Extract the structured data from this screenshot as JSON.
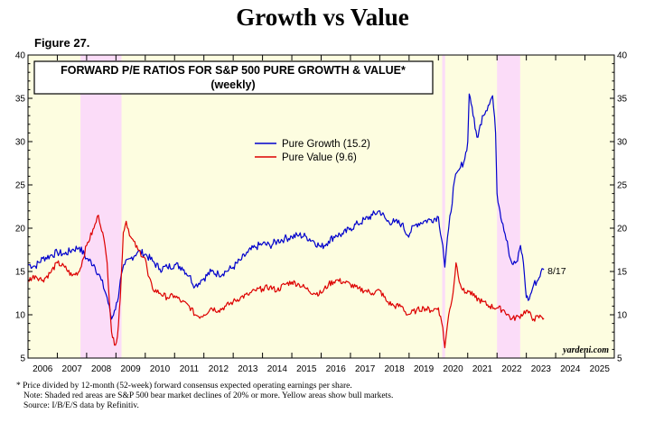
{
  "header": {
    "title": "Growth vs Value",
    "figure": "Figure 27."
  },
  "chart_data": {
    "type": "line",
    "title": "FORWARD P/E RATIOS FOR S&P 500 PURE GROWTH & VALUE*",
    "subtitle": "(weekly)",
    "x_range": [
      2006.0,
      2026.0
    ],
    "ylim": [
      5,
      40
    ],
    "y_ticks": [
      5,
      10,
      15,
      20,
      25,
      30,
      35,
      40
    ],
    "x_tick_labels": [
      "2006",
      "2007",
      "2008",
      "2009",
      "2010",
      "2011",
      "2012",
      "2013",
      "2014",
      "2015",
      "2016",
      "2017",
      "2018",
      "2019",
      "2020",
      "2021",
      "2022",
      "2023",
      "2024",
      "2025"
    ],
    "grid": false,
    "legend_position": "upper-center",
    "background_color": "#fdfde0",
    "bear_market_color": "#fbdcf8",
    "bear_markets": [
      [
        2007.79,
        2009.19
      ],
      [
        2020.13,
        2020.23
      ],
      [
        2022.0,
        2022.79
      ]
    ],
    "end_annotation": "8/17",
    "watermark": "yardeni.com",
    "series": [
      {
        "name": "Pure Growth (15.2)",
        "color": "#0000cc",
        "points": [
          [
            2006.0,
            15.8
          ],
          [
            2006.25,
            15.6
          ],
          [
            2006.5,
            16.5
          ],
          [
            2006.75,
            16.8
          ],
          [
            2007.0,
            17.2
          ],
          [
            2007.25,
            17.0
          ],
          [
            2007.5,
            17.5
          ],
          [
            2007.75,
            17.8
          ],
          [
            2008.0,
            16.5
          ],
          [
            2008.25,
            15.8
          ],
          [
            2008.5,
            14.0
          ],
          [
            2008.7,
            12.0
          ],
          [
            2008.85,
            9.5
          ],
          [
            2008.95,
            10.5
          ],
          [
            2009.05,
            11.5
          ],
          [
            2009.15,
            14.0
          ],
          [
            2009.3,
            15.8
          ],
          [
            2009.5,
            16.5
          ],
          [
            2009.75,
            17.3
          ],
          [
            2010.0,
            17.0
          ],
          [
            2010.25,
            16.2
          ],
          [
            2010.5,
            15.3
          ],
          [
            2010.75,
            15.5
          ],
          [
            2011.0,
            15.8
          ],
          [
            2011.25,
            15.5
          ],
          [
            2011.5,
            14.5
          ],
          [
            2011.7,
            13.3
          ],
          [
            2011.9,
            14.0
          ],
          [
            2012.0,
            14.2
          ],
          [
            2012.25,
            15.0
          ],
          [
            2012.5,
            14.7
          ],
          [
            2012.75,
            15.0
          ],
          [
            2013.0,
            15.5
          ],
          [
            2013.25,
            16.3
          ],
          [
            2013.5,
            17.2
          ],
          [
            2013.75,
            17.8
          ],
          [
            2014.0,
            18.2
          ],
          [
            2014.25,
            18.0
          ],
          [
            2014.5,
            18.5
          ],
          [
            2014.75,
            18.8
          ],
          [
            2015.0,
            19.0
          ],
          [
            2015.25,
            19.2
          ],
          [
            2015.5,
            19.0
          ],
          [
            2015.75,
            18.5
          ],
          [
            2016.0,
            17.8
          ],
          [
            2016.25,
            18.5
          ],
          [
            2016.5,
            19.2
          ],
          [
            2016.75,
            19.3
          ],
          [
            2017.0,
            20.0
          ],
          [
            2017.25,
            20.5
          ],
          [
            2017.5,
            21.0
          ],
          [
            2017.75,
            21.5
          ],
          [
            2018.0,
            22.0
          ],
          [
            2018.25,
            20.8
          ],
          [
            2018.5,
            20.7
          ],
          [
            2018.75,
            20.5
          ],
          [
            2018.95,
            19.2
          ],
          [
            2019.25,
            20.5
          ],
          [
            2019.5,
            20.8
          ],
          [
            2019.75,
            21.0
          ],
          [
            2020.0,
            21.3
          ],
          [
            2020.15,
            18.0
          ],
          [
            2020.22,
            15.5
          ],
          [
            2020.35,
            20.0
          ],
          [
            2020.55,
            25.5
          ],
          [
            2020.75,
            27.0
          ],
          [
            2020.9,
            28.0
          ],
          [
            2021.0,
            30.0
          ],
          [
            2021.05,
            35.5
          ],
          [
            2021.15,
            34.0
          ],
          [
            2021.25,
            31.5
          ],
          [
            2021.35,
            30.5
          ],
          [
            2021.5,
            33.0
          ],
          [
            2021.7,
            34.2
          ],
          [
            2021.85,
            35.3
          ],
          [
            2021.95,
            31.0
          ],
          [
            2022.0,
            24.0
          ],
          [
            2022.1,
            22.0
          ],
          [
            2022.2,
            20.5
          ],
          [
            2022.35,
            18.5
          ],
          [
            2022.45,
            16.5
          ],
          [
            2022.55,
            15.8
          ],
          [
            2022.7,
            16.2
          ],
          [
            2022.8,
            18.0
          ],
          [
            2022.9,
            16.0
          ],
          [
            2023.0,
            12.0
          ],
          [
            2023.1,
            11.8
          ],
          [
            2023.25,
            13.5
          ],
          [
            2023.4,
            14.0
          ],
          [
            2023.5,
            15.0
          ],
          [
            2023.6,
            15.2
          ]
        ]
      },
      {
        "name": "Pure Value (9.6)",
        "color": "#dd0000",
        "points": [
          [
            2006.0,
            14.0
          ],
          [
            2006.25,
            14.5
          ],
          [
            2006.5,
            14.0
          ],
          [
            2006.75,
            14.8
          ],
          [
            2007.0,
            16.0
          ],
          [
            2007.25,
            15.5
          ],
          [
            2007.5,
            14.5
          ],
          [
            2007.75,
            15.0
          ],
          [
            2008.0,
            18.0
          ],
          [
            2008.25,
            20.0
          ],
          [
            2008.4,
            21.5
          ],
          [
            2008.55,
            19.5
          ],
          [
            2008.7,
            16.0
          ],
          [
            2008.85,
            8.0
          ],
          [
            2008.95,
            6.5
          ],
          [
            2009.05,
            7.5
          ],
          [
            2009.15,
            12.0
          ],
          [
            2009.25,
            19.5
          ],
          [
            2009.35,
            20.8
          ],
          [
            2009.5,
            19.0
          ],
          [
            2009.75,
            17.5
          ],
          [
            2010.0,
            16.5
          ],
          [
            2010.1,
            14.5
          ],
          [
            2010.25,
            13.0
          ],
          [
            2010.5,
            12.5
          ],
          [
            2010.75,
            12.0
          ],
          [
            2011.0,
            12.2
          ],
          [
            2011.25,
            11.5
          ],
          [
            2011.5,
            11.0
          ],
          [
            2011.7,
            10.0
          ],
          [
            2011.9,
            9.8
          ],
          [
            2012.0,
            10.0
          ],
          [
            2012.25,
            10.8
          ],
          [
            2012.5,
            10.5
          ],
          [
            2012.75,
            11.0
          ],
          [
            2013.0,
            11.5
          ],
          [
            2013.25,
            12.0
          ],
          [
            2013.5,
            12.3
          ],
          [
            2013.75,
            12.8
          ],
          [
            2014.0,
            13.0
          ],
          [
            2014.25,
            13.2
          ],
          [
            2014.5,
            12.8
          ],
          [
            2014.75,
            13.5
          ],
          [
            2015.0,
            13.8
          ],
          [
            2015.25,
            13.5
          ],
          [
            2015.5,
            13.0
          ],
          [
            2015.75,
            12.5
          ],
          [
            2016.0,
            12.5
          ],
          [
            2016.25,
            13.5
          ],
          [
            2016.5,
            14.0
          ],
          [
            2016.75,
            13.8
          ],
          [
            2017.0,
            13.5
          ],
          [
            2017.25,
            13.0
          ],
          [
            2017.5,
            12.8
          ],
          [
            2017.75,
            12.5
          ],
          [
            2018.0,
            12.8
          ],
          [
            2018.25,
            11.5
          ],
          [
            2018.5,
            11.0
          ],
          [
            2018.75,
            11.0
          ],
          [
            2018.95,
            10.0
          ],
          [
            2019.25,
            10.5
          ],
          [
            2019.5,
            10.8
          ],
          [
            2019.75,
            10.5
          ],
          [
            2020.0,
            10.8
          ],
          [
            2020.15,
            8.5
          ],
          [
            2020.22,
            6.2
          ],
          [
            2020.35,
            10.0
          ],
          [
            2020.5,
            12.5
          ],
          [
            2020.6,
            16.0
          ],
          [
            2020.75,
            13.5
          ],
          [
            2020.9,
            12.5
          ],
          [
            2021.0,
            12.8
          ],
          [
            2021.25,
            12.0
          ],
          [
            2021.5,
            11.5
          ],
          [
            2021.75,
            11.0
          ],
          [
            2022.0,
            10.8
          ],
          [
            2022.25,
            10.5
          ],
          [
            2022.5,
            9.5
          ],
          [
            2022.75,
            9.8
          ],
          [
            2023.0,
            10.5
          ],
          [
            2023.25,
            9.5
          ],
          [
            2023.5,
            9.8
          ],
          [
            2023.6,
            9.6
          ]
        ]
      }
    ]
  },
  "footnotes": {
    "line1": "*  Price divided by 12-month (52-week) forward consensus expected operating earnings per share.",
    "line2": "Note: Shaded red areas are S&P 500 bear market declines of 20% or more. Yellow areas show bull markets.",
    "line3": "Source: I/B/E/S data by Refinitiv."
  }
}
